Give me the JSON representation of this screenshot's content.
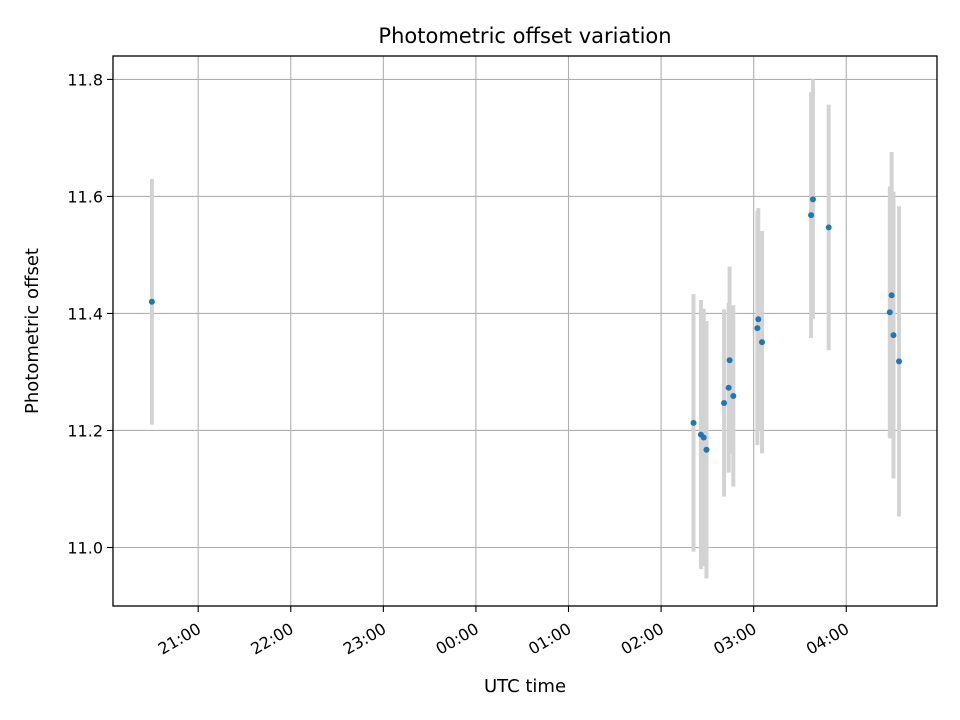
{
  "chart_data": {
    "type": "scatter",
    "title": "Photometric offset variation",
    "xlabel": "UTC time",
    "ylabel": "Photometric offset",
    "x_unit": "hour (UTC, continuing past midnight)",
    "xlim": [
      20.08,
      28.98
    ],
    "ylim": [
      10.9,
      11.84
    ],
    "x_ticks": [
      {
        "value": 21,
        "label": "21:00"
      },
      {
        "value": 22,
        "label": "22:00"
      },
      {
        "value": 23,
        "label": "23:00"
      },
      {
        "value": 24,
        "label": "00:00"
      },
      {
        "value": 25,
        "label": "01:00"
      },
      {
        "value": 26,
        "label": "02:00"
      },
      {
        "value": 27,
        "label": "03:00"
      },
      {
        "value": 28,
        "label": "04:00"
      }
    ],
    "y_ticks": [
      {
        "value": 11.0,
        "label": "11.0"
      },
      {
        "value": 11.2,
        "label": "11.2"
      },
      {
        "value": 11.4,
        "label": "11.4"
      },
      {
        "value": 11.6,
        "label": "11.6"
      },
      {
        "value": 11.8,
        "label": "11.8"
      }
    ],
    "grid": true,
    "point_color": "#1f77b4",
    "errorbar_color": "#d3d3d3",
    "points": [
      {
        "x": 20.5,
        "y": 11.42,
        "err": 0.21
      },
      {
        "x": 26.35,
        "y": 11.213,
        "err": 0.22
      },
      {
        "x": 26.43,
        "y": 11.193,
        "err": 0.23
      },
      {
        "x": 26.46,
        "y": 11.188,
        "err": 0.22
      },
      {
        "x": 26.49,
        "y": 11.167,
        "err": 0.22
      },
      {
        "x": 26.68,
        "y": 11.247,
        "err": 0.16
      },
      {
        "x": 26.73,
        "y": 11.273,
        "err": 0.145
      },
      {
        "x": 26.74,
        "y": 11.32,
        "err": 0.16
      },
      {
        "x": 26.78,
        "y": 11.259,
        "err": 0.155
      },
      {
        "x": 27.04,
        "y": 11.375,
        "err": 0.2
      },
      {
        "x": 27.05,
        "y": 11.39,
        "err": 0.19
      },
      {
        "x": 27.09,
        "y": 11.351,
        "err": 0.19
      },
      {
        "x": 27.62,
        "y": 11.568,
        "err": 0.21
      },
      {
        "x": 27.64,
        "y": 11.595,
        "err": 0.205
      },
      {
        "x": 27.81,
        "y": 11.547,
        "err": 0.21
      },
      {
        "x": 28.47,
        "y": 11.402,
        "err": 0.215
      },
      {
        "x": 28.49,
        "y": 11.431,
        "err": 0.245
      },
      {
        "x": 28.51,
        "y": 11.363,
        "err": 0.245
      },
      {
        "x": 28.57,
        "y": 11.318,
        "err": 0.265
      }
    ]
  }
}
